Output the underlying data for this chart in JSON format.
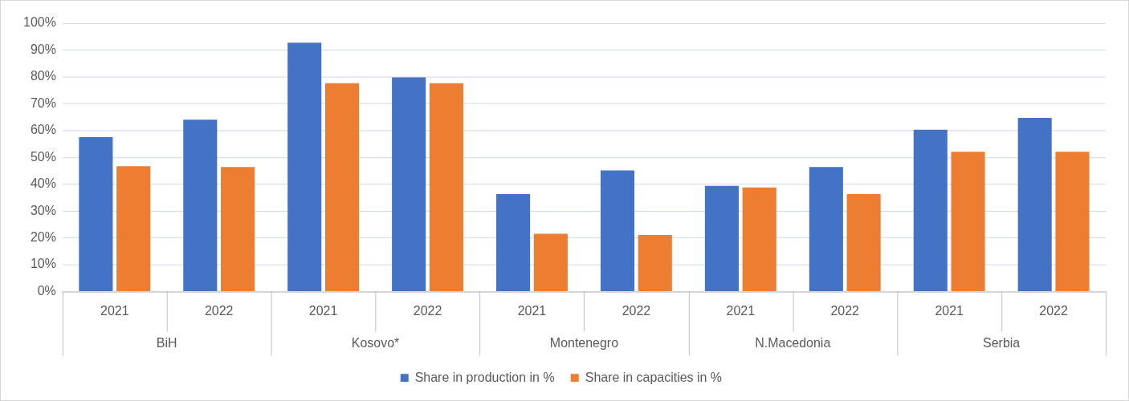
{
  "chart_data": {
    "type": "bar",
    "categories": [
      "2021",
      "2022",
      "2021",
      "2022",
      "2021",
      "2022",
      "2021",
      "2022",
      "2021",
      "2022"
    ],
    "annotations": [
      "BiH",
      "Kosovo*",
      "Montenegro",
      "N.Macedonia",
      "Serbia"
    ],
    "series": [
      {
        "name": "Share in production in %",
        "color": "#4472c4",
        "values": [
          57.5,
          64,
          92.7,
          79.8,
          36.3,
          45.1,
          39.4,
          46.4,
          60.3,
          64.7
        ]
      },
      {
        "name": "Share in capacities in %",
        "color": "#ed7d31",
        "values": [
          46.7,
          46.4,
          77.6,
          77.6,
          21.5,
          21.1,
          38.8,
          36.3,
          52.1,
          52.1
        ]
      }
    ],
    "ylim": [
      0,
      100
    ],
    "yticks": [
      {
        "value": 0,
        "label": "0%"
      },
      {
        "value": 10,
        "label": "10%"
      },
      {
        "value": 20,
        "label": "20%"
      },
      {
        "value": 30,
        "label": "30%"
      },
      {
        "value": 40,
        "label": "40%"
      },
      {
        "value": 50,
        "label": "50%"
      },
      {
        "value": 60,
        "label": "60%"
      },
      {
        "value": 70,
        "label": "70%"
      },
      {
        "value": 80,
        "label": "80%"
      },
      {
        "value": 90,
        "label": "90%"
      },
      {
        "value": 100,
        "label": "100%"
      }
    ],
    "grid": "y",
    "legend": "bottom"
  }
}
